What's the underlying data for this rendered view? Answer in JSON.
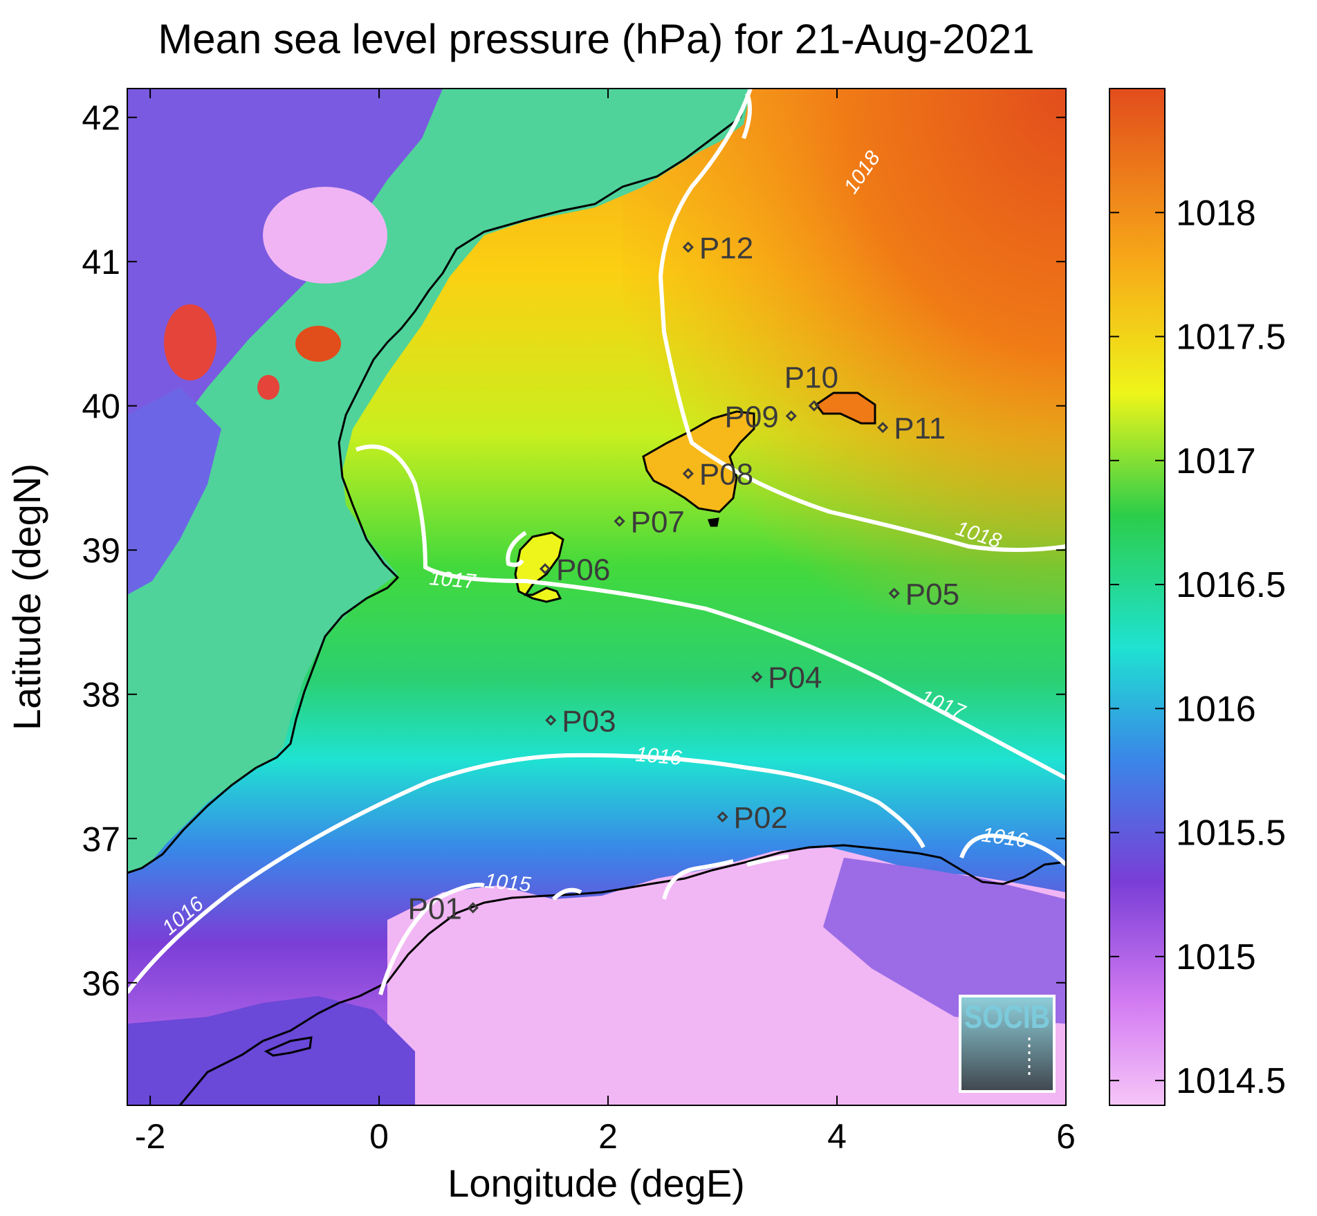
{
  "title": "Mean sea level pressure (hPa) for 21-Aug-2021",
  "chart_data": {
    "type": "heatmap",
    "title": "Mean sea level pressure (hPa) for 21-Aug-2021",
    "xlabel": "Longitude (degE)",
    "ylabel": "Latitude (degN)",
    "xlim": [
      -2.2,
      6.0
    ],
    "ylim": [
      35.15,
      42.2
    ],
    "x_ticks": [
      -2,
      0,
      2,
      4,
      6
    ],
    "y_ticks": [
      36,
      37,
      38,
      39,
      40,
      41,
      42
    ],
    "colorbar": {
      "range": [
        1014.4,
        1018.5
      ],
      "ticks": [
        "1014.5",
        "1015",
        "1015.5",
        "1016",
        "1016.5",
        "1017",
        "1017.5",
        "1018"
      ]
    },
    "contours": [
      {
        "level": "1015",
        "label": "1015"
      },
      {
        "level": "1016",
        "label": "1016"
      },
      {
        "level": "1017",
        "label": "1017"
      },
      {
        "level": "1018",
        "label": "1018"
      }
    ],
    "stations": [
      {
        "id": "P01",
        "lon": 0.82,
        "lat": 36.52
      },
      {
        "id": "P02",
        "lon": 3.0,
        "lat": 37.15
      },
      {
        "id": "P03",
        "lon": 1.5,
        "lat": 37.82
      },
      {
        "id": "P04",
        "lon": 3.3,
        "lat": 38.12
      },
      {
        "id": "P05",
        "lon": 4.5,
        "lat": 38.7
      },
      {
        "id": "P06",
        "lon": 1.45,
        "lat": 38.87
      },
      {
        "id": "P07",
        "lon": 2.1,
        "lat": 39.2
      },
      {
        "id": "P08",
        "lon": 2.7,
        "lat": 39.53
      },
      {
        "id": "P09",
        "lon": 3.6,
        "lat": 39.93
      },
      {
        "id": "P10",
        "lon": 3.8,
        "lat": 40.0
      },
      {
        "id": "P11",
        "lon": 4.4,
        "lat": 39.85
      },
      {
        "id": "P12",
        "lon": 2.7,
        "lat": 41.1
      }
    ]
  },
  "logo": {
    "text": "SOCIB"
  },
  "colors": {
    "c_low": "#f0b4f4",
    "c_purple": "#7a3ed6",
    "c_blue": "#3a86e8",
    "c_cyan": "#1fe2d2",
    "c_green": "#2ccd4a",
    "c_yellow": "#eef51a",
    "c_orange": "#f7a918",
    "c_red": "#e24d1c",
    "contour": "#ffffff",
    "coast": "#000000"
  }
}
